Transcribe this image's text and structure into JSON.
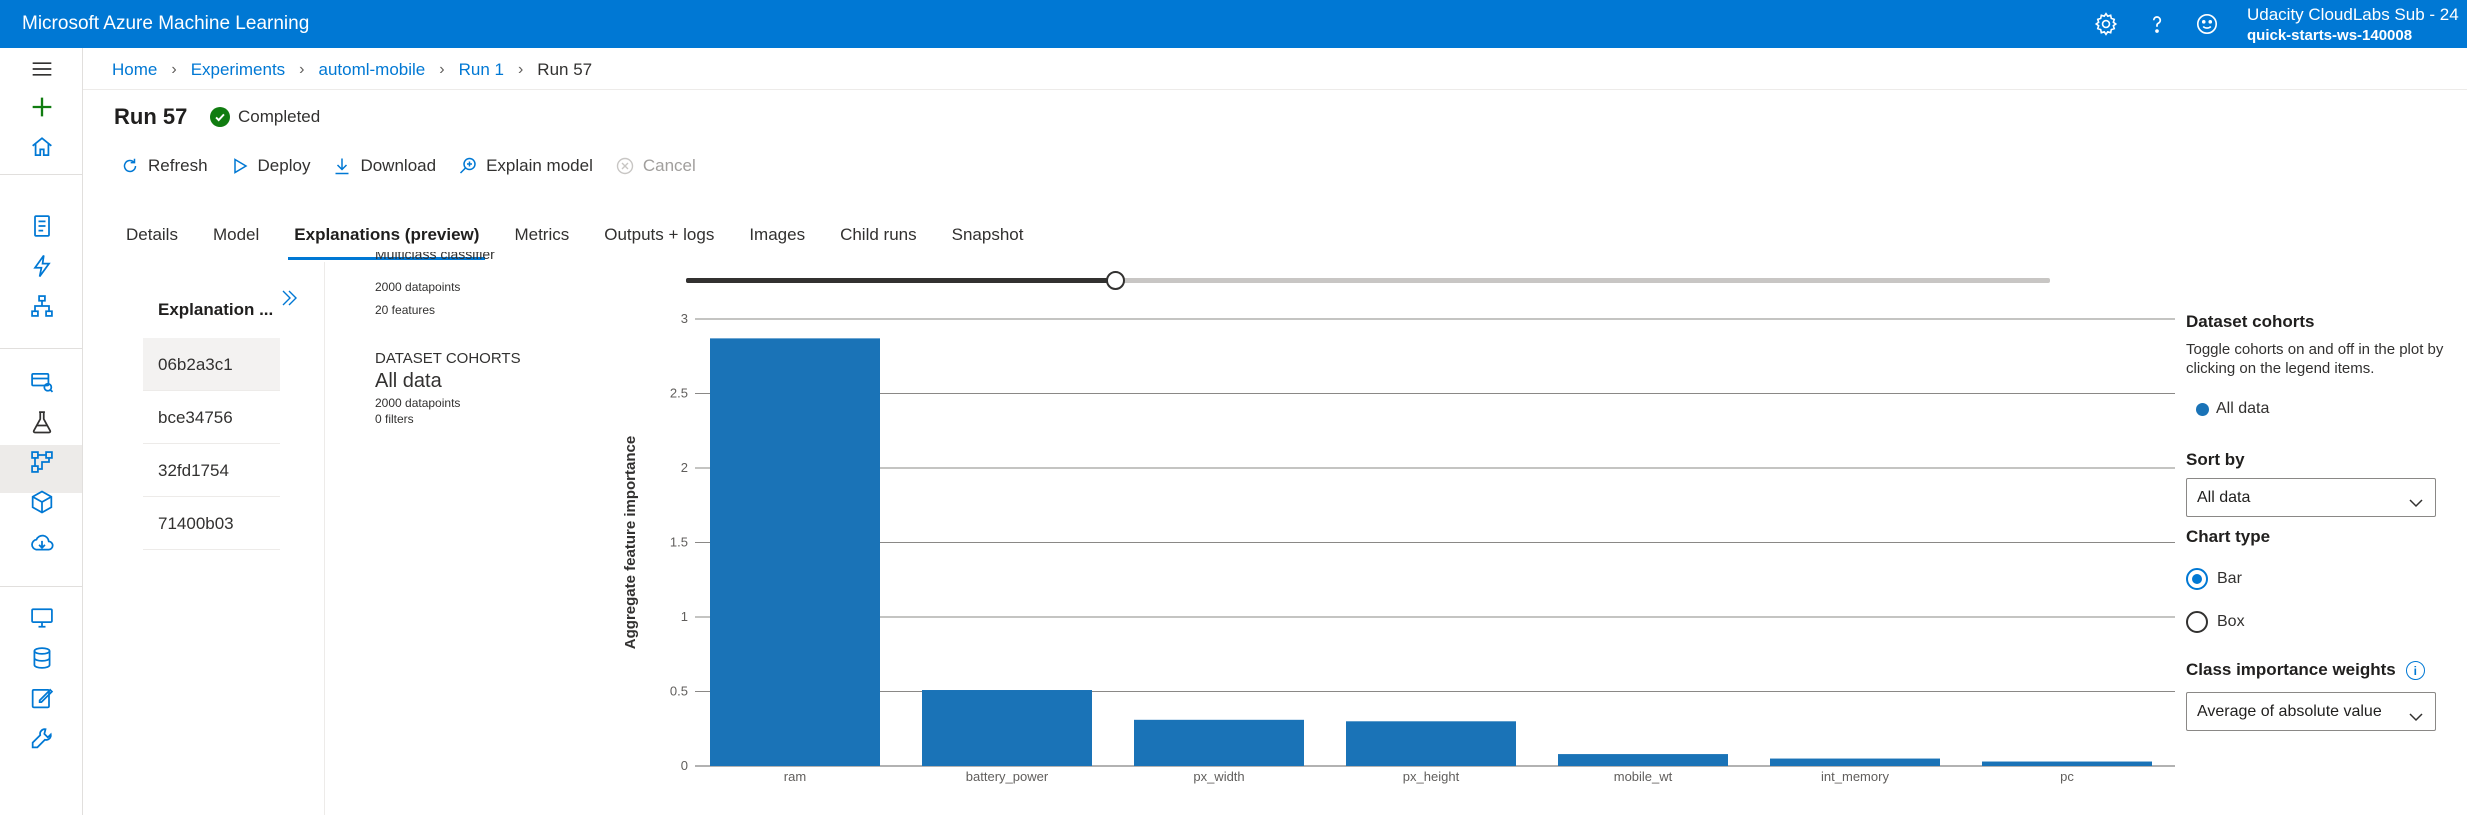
{
  "topbar": {
    "app_title": "Microsoft Azure Machine Learning",
    "icons": [
      "gear-icon",
      "help-icon",
      "feedback-smiley-icon"
    ],
    "account_name": "Udacity CloudLabs Sub - 24",
    "workspace": "quick-starts-ws-140008"
  },
  "leftnav": {
    "icons": [
      "hamburger-menu-icon",
      "plus-icon",
      "home-icon",
      "notebook-icon",
      "automl-lightning-icon",
      "designer-icon",
      "datasets-icon",
      "experiments-flask-icon",
      "pipelines-icon",
      "models-cube-icon",
      "endpoints-cloud-icon",
      "compute-monitor-icon",
      "datastores-database-icon",
      "labeling-edit-icon",
      "linked-services-icon"
    ],
    "active": "experiments-flask-icon"
  },
  "breadcrumb": {
    "items": [
      "Home",
      "Experiments",
      "automl-mobile",
      "Run 1"
    ],
    "current": "Run 57"
  },
  "run": {
    "title": "Run 57",
    "status": "Completed",
    "status_color": "#107c10"
  },
  "toolbar": {
    "refresh": "Refresh",
    "deploy": "Deploy",
    "download": "Download",
    "explain": "Explain model",
    "cancel": "Cancel"
  },
  "tabs": [
    "Details",
    "Model",
    "Explanations (preview)",
    "Metrics",
    "Outputs + logs",
    "Images",
    "Child runs",
    "Snapshot"
  ],
  "active_tab": "Explanations (preview)",
  "explanations": {
    "header": "Explanation ...",
    "items": [
      "06b2a3c1",
      "bce34756",
      "32fd1754",
      "71400b03"
    ],
    "selected": "06b2a3c1"
  },
  "model_info": {
    "model_type": "Multiclass classifier",
    "datapoints": "2000 datapoints",
    "features": "20 features",
    "cohorts_heading": "DATASET COHORTS",
    "cohort_name": "All data",
    "cohort_datapoints": "2000 datapoints",
    "cohort_filters": "0 filters"
  },
  "slider": {
    "value_fraction": 0.315
  },
  "chart_data": {
    "type": "bar",
    "categories": [
      "ram",
      "battery_power",
      "px_width",
      "px_height",
      "mobile_wt",
      "int_memory",
      "pc"
    ],
    "series": [
      {
        "name": "All data",
        "values": [
          2.87,
          0.51,
          0.31,
          0.3,
          0.08,
          0.05,
          0.03
        ]
      }
    ],
    "ylabel": "Aggregate feature importance",
    "ylim": [
      0,
      3
    ],
    "yticks": [
      "0",
      "0.5",
      "1",
      "1.5",
      "2",
      "2.5",
      "3"
    ],
    "grid": true,
    "bar_color": "#1a73b7"
  },
  "right_panel": {
    "cohorts_title": "Dataset cohorts",
    "cohorts_desc": "Toggle cohorts on and off in the plot by clicking on the legend items.",
    "legend_item": "All data",
    "legend_color": "#1a73b7",
    "sort_by_label": "Sort by",
    "sort_by_value": "All data",
    "chart_type_label": "Chart type",
    "chart_type_options": [
      "Bar",
      "Box"
    ],
    "chart_type_selected": "Bar",
    "weights_label": "Class importance weights",
    "weights_value": "Average of absolute value"
  },
  "colors": {
    "brand": "#0078d4",
    "accent_text": "#0078d4"
  }
}
